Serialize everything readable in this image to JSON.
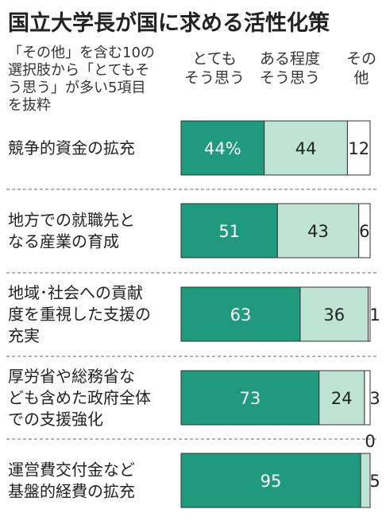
{
  "chart_data": {
    "type": "bar",
    "orientation": "horizontal",
    "stacked": true,
    "title": "国立大学長が国に求める活性化策",
    "note_lines": [
      "「その他」を含む10の",
      "選択肢から「とてもそ",
      "う思う」が多い5項目",
      "を抜粋"
    ],
    "series": [
      {
        "name": "とても\nそう思う",
        "color": "#1f9a7c",
        "values": [
          44,
          51,
          63,
          73,
          95
        ]
      },
      {
        "name": "ある程度\nそう思う",
        "color": "#bfe4d6",
        "values": [
          44,
          43,
          36,
          24,
          5
        ]
      },
      {
        "name": "その\n他",
        "color": "#ffffff",
        "values": [
          12,
          6,
          1,
          3,
          0
        ]
      }
    ],
    "categories": [
      "競争的資金の拡充",
      "地方での就職先と\nなる産業の育成",
      "地域･社会への貢献\n度を重視した支援の\n充実",
      "厚労省や総務省な\nども含めた政府全体\nでの支援強化",
      "運営費交付金など\n基盤的経費の拡充"
    ],
    "data_labels": [
      [
        "44%",
        "44",
        "12"
      ],
      [
        "51",
        "43",
        "6"
      ],
      [
        "63",
        "36",
        "1"
      ],
      [
        "73",
        "24",
        "3"
      ],
      [
        "95",
        "5",
        "0"
      ]
    ],
    "xlim": [
      0,
      100
    ]
  }
}
